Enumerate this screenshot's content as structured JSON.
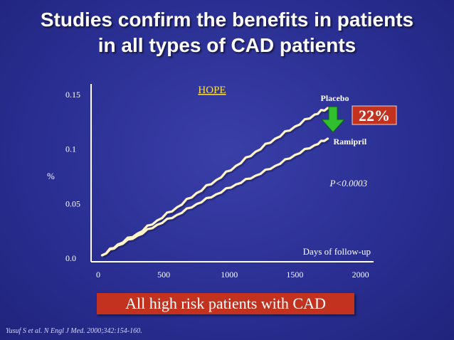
{
  "title_line1": "Studies confirm the benefits in patients",
  "title_line2": "in all types of CAD patients",
  "banner": "All high risk patients with CAD",
  "citation": "Yusuf S et al. N Engl J Med. 2000;342:154-160.",
  "reduction_badge": "22%",
  "colors": {
    "background": "#2a2f93",
    "banner": "#c3321e",
    "arrow": "#2fbf2f",
    "line": "#fff5c8"
  },
  "chart_data": {
    "type": "line",
    "title": "HOPE",
    "ylabel": "%",
    "xlabel": "Days of follow-up",
    "xlim": [
      0,
      2100
    ],
    "ylim": [
      0,
      0.15
    ],
    "x_ticks": [
      {
        "value": 0,
        "label": "0"
      },
      {
        "value": 500,
        "label": "500"
      },
      {
        "value": 1000,
        "label": "1000"
      },
      {
        "value": 1500,
        "label": "1500"
      },
      {
        "value": 2000,
        "label": "2000"
      }
    ],
    "y_ticks": [
      {
        "value": 0,
        "label": "0.0"
      },
      {
        "value": 0.05,
        "label": "0.05"
      },
      {
        "value": 0.1,
        "label": "0.1"
      },
      {
        "value": 0.15,
        "label": "0.15"
      }
    ],
    "grid": false,
    "annotation": "P<0.0003",
    "series": [
      {
        "name": "Placebo",
        "x": [
          30,
          150,
          300,
          450,
          600,
          750,
          900,
          1050,
          1200,
          1350,
          1500,
          1650,
          1750
        ],
        "y": [
          0.002,
          0.012,
          0.022,
          0.034,
          0.046,
          0.059,
          0.071,
          0.084,
          0.097,
          0.109,
          0.12,
          0.131,
          0.137
        ]
      },
      {
        "name": "Ramipril",
        "x": [
          30,
          150,
          300,
          450,
          600,
          750,
          900,
          1050,
          1200,
          1350,
          1500,
          1650,
          1750
        ],
        "y": [
          0.002,
          0.011,
          0.02,
          0.03,
          0.039,
          0.049,
          0.058,
          0.067,
          0.075,
          0.084,
          0.094,
          0.103,
          0.109
        ]
      }
    ]
  }
}
